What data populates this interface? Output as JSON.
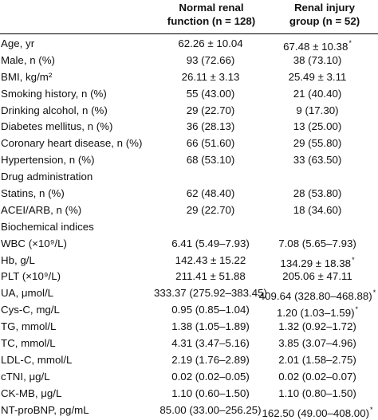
{
  "header": {
    "col1": [
      "Normal renal",
      "function (n = 128)"
    ],
    "col2": [
      "Renal injury",
      "group (n = 52)"
    ]
  },
  "rows": [
    {
      "label": "Age, yr",
      "v1": "62.26 ± 10.04",
      "v2": "67.48 ± 10.38",
      "v2_mark": "*",
      "v1_align": "c",
      "v2_align": "c"
    },
    {
      "label": "Male, n (%)",
      "v1": "93 (72.66)",
      "v2": "38 (73.10)"
    },
    {
      "label": "BMI, kg/m²",
      "v1": "26.11 ± 3.13",
      "v2": "25.49 ± 3.11",
      "v1_align": "c",
      "v2_align": "c"
    },
    {
      "label": "Smoking history, n (%)",
      "v1": "55 (43.00)",
      "v2": "21 (40.40)"
    },
    {
      "label": "Drinking alcohol, n (%)",
      "v1": "29 (22.70)",
      "v2": "9 (17.30)"
    },
    {
      "label": "Diabetes mellitus, n (%)",
      "v1": "36 (28.13)",
      "v2": "13 (25.00)"
    },
    {
      "label": "Coronary heart disease, n (%)",
      "v1": "66 (51.60)",
      "v2": "29 (55.80)"
    },
    {
      "label": "Hypertension, n (%)",
      "v1": "68 (53.10)",
      "v2": "33 (63.50)"
    },
    {
      "label": "Drug administration",
      "v1": "",
      "v2": ""
    },
    {
      "label": "Statins, n (%)",
      "v1": "62 (48.40)",
      "v2": "28 (53.80)"
    },
    {
      "label": "ACEI/ARB, n (%)",
      "v1": "29 (22.70)",
      "v2": "18 (34.60)"
    },
    {
      "label": "Biochemical indices",
      "v1": "",
      "v2": ""
    },
    {
      "label": "WBC (×10⁹/L)",
      "v1": "6.41 (5.49–7.93)",
      "v2": "7.08 (5.65–7.93)"
    },
    {
      "label": "Hb, g/L",
      "v1": "142.43 ± 15.22",
      "v2": "134.29 ± 18.38",
      "v2_mark": "*",
      "v1_align": "c",
      "v2_align": "c"
    },
    {
      "label": "PLT (×10⁹/L)",
      "v1": "211.41 ± 51.88",
      "v2": "205.06 ± 47.11",
      "v1_align": "c",
      "v2_align": "c"
    },
    {
      "label": "UA, μmol/L",
      "v1": "333.37 (275.92–383.45)",
      "v2": "409.64 (328.80–468.88)",
      "v2_mark": "*"
    },
    {
      "label": "Cys-C, mg/L",
      "v1": "0.95 (0.85–1.04)",
      "v2": "1.20 (1.03–1.59)",
      "v2_mark": "*"
    },
    {
      "label": "TG, mmol/L",
      "v1": "1.38 (1.05–1.89)",
      "v2": "1.32 (0.92–1.72)"
    },
    {
      "label": "TC, mmol/L",
      "v1": "4.31 (3.47–5.16)",
      "v2": "3.85 (3.07–4.96)"
    },
    {
      "label": "LDL-C, mmol/L",
      "v1": "2.19 (1.76–2.89)",
      "v2": "2.01 (1.58–2.75)"
    },
    {
      "label": "cTNI, μg/L",
      "v1": "0.02 (0.02–0.05)",
      "v2": "0.02 (0.02–0.07)"
    },
    {
      "label": "CK-MB, μg/L",
      "v1": "1.10 (0.60–1.50)",
      "v2": "1.10 (0.80–1.50)"
    },
    {
      "label": "NT-proBNP, pg/mL",
      "v1": "85.00 (33.00–256.25)",
      "v2": "162.50 (49.00–408.00)",
      "v2_mark": "*"
    }
  ]
}
